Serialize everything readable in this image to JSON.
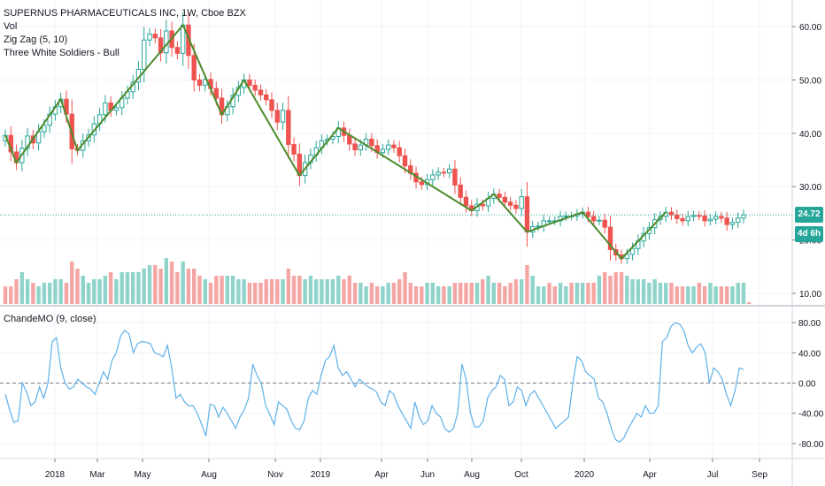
{
  "header": {
    "title": "SUPERNUS PHARMACEUTICALS INC, 1W, Cboe BZX",
    "indicators": [
      "Vol",
      "Zig Zag (5, 10)",
      "Three White Soldiers - Bull"
    ]
  },
  "price_badge": {
    "value": "24.72",
    "countdown": "4d 6h"
  },
  "colors": {
    "up": "#26a69a",
    "down": "#ef5350",
    "volume_up": "#8fd4cb",
    "volume_down": "#f4a6a4",
    "zigzag": "#4c8c2b",
    "cmo_line": "#5eb1e8",
    "badge_price": "#26a69a",
    "badge_countdown": "#26a69a"
  },
  "chart_data": [
    {
      "type": "candlestick",
      "title": "SUPERNUS PHARMACEUTICALS INC, 1W, Cboe BZX",
      "ylim": [
        8,
        65
      ],
      "yticks": [
        10,
        20,
        30,
        40,
        50,
        60
      ],
      "ytick_labels": [
        "10.00",
        "20.00",
        "30.00",
        "40.00",
        "50.00",
        "60.00"
      ],
      "x_tick_labels": [
        "2018",
        "Mar",
        "May",
        "Aug",
        "Nov",
        "2019",
        "Apr",
        "Jun",
        "Aug",
        "Oct",
        "2020",
        "Apr",
        "Jul",
        "Sep"
      ],
      "current_price": 24.72,
      "close": [
        39.6,
        36.5,
        34.5,
        37.2,
        39.5,
        38.2,
        40.3,
        41.5,
        43.6,
        45.0,
        46.4,
        43.6,
        37.1,
        36.8,
        38.6,
        39.7,
        41.8,
        43.5,
        45.7,
        44.3,
        44.8,
        46.6,
        47.8,
        49.6,
        52.0,
        57.5,
        58.6,
        57.9,
        55.1,
        59.2,
        56.1,
        55.0,
        60.3,
        54.6,
        50.0,
        49.0,
        50.1,
        48.4,
        46.6,
        43.5,
        45.0,
        47.1,
        48.6,
        50.0,
        49.0,
        48.1,
        47.2,
        46.3,
        44.3,
        42.1,
        44.3,
        37.9,
        36.1,
        32.1,
        34.5,
        35.9,
        37.3,
        38.6,
        38.9,
        39.4,
        41.0,
        39.6,
        38.0,
        36.9,
        37.8,
        38.9,
        37.7,
        36.4,
        37.0,
        37.8,
        37.3,
        35.8,
        33.9,
        32.5,
        30.9,
        30.4,
        31.3,
        32.2,
        32.7,
        32.6,
        33.3,
        30.3,
        28.0,
        26.4,
        25.5,
        26.7,
        26.4,
        27.8,
        28.6,
        28.0,
        27.1,
        26.5,
        25.9,
        28.1,
        21.5,
        22.5,
        22.6,
        23.6,
        23.6,
        23.6,
        24.4,
        24.5,
        24.5,
        24.9,
        25.2,
        24.4,
        23.6,
        23.7,
        22.4,
        18.2,
        17.2,
        16.5,
        17.3,
        18.4,
        19.8,
        21.2,
        22.3,
        23.8,
        24.4,
        25.2,
        24.7,
        24.0,
        23.6,
        24.4,
        24.6,
        24.5,
        23.6,
        23.9,
        24.4,
        24.1,
        22.9,
        23.3,
        24.1,
        24.72
      ]
    },
    {
      "type": "bar",
      "title": "Vol",
      "values": [
        5,
        5,
        7,
        9,
        7,
        6,
        5,
        6,
        6,
        7,
        7,
        6,
        12,
        10,
        8,
        6,
        7,
        7,
        8,
        9,
        7,
        9,
        9,
        9,
        9,
        10,
        11,
        11,
        10,
        13,
        12,
        9,
        12,
        10,
        10,
        8,
        7,
        6,
        8,
        8,
        8,
        8,
        7,
        7,
        6,
        6,
        6,
        7,
        7,
        7,
        7,
        10,
        8,
        8,
        7,
        8,
        7,
        7,
        7,
        7,
        8,
        7,
        8,
        6,
        6,
        5,
        6,
        5,
        5,
        6,
        6,
        7,
        9,
        6,
        5,
        5,
        6,
        6,
        5,
        5,
        5,
        6,
        6,
        6,
        6,
        6,
        7,
        8,
        6,
        6,
        5,
        6,
        7,
        7,
        11,
        8,
        5,
        5,
        6,
        5,
        6,
        5,
        6,
        6,
        6,
        6,
        6,
        8,
        9,
        8,
        9,
        9,
        8,
        7,
        7,
        7,
        6,
        7,
        6,
        6,
        6,
        5,
        5,
        5,
        5,
        6,
        5,
        6,
        5,
        5,
        5,
        5,
        6,
        6,
        0.5
      ],
      "up": [
        0,
        0,
        0,
        1,
        1,
        0,
        1,
        1,
        1,
        1,
        1,
        0,
        0,
        0,
        1,
        1,
        1,
        1,
        1,
        0,
        1,
        1,
        1,
        1,
        1,
        1,
        1,
        0,
        0,
        1,
        0,
        0,
        1,
        0,
        0,
        0,
        1,
        0,
        0,
        0,
        1,
        1,
        1,
        1,
        0,
        0,
        0,
        0,
        0,
        0,
        1,
        0,
        0,
        0,
        1,
        1,
        1,
        1,
        1,
        1,
        1,
        0,
        0,
        0,
        1,
        1,
        0,
        0,
        1,
        1,
        0,
        0,
        0,
        0,
        0,
        0,
        1,
        1,
        1,
        0,
        1,
        0,
        0,
        0,
        0,
        1,
        0,
        1,
        1,
        0,
        0,
        0,
        0,
        1,
        0,
        1,
        1,
        1,
        0,
        0,
        1,
        1,
        0,
        1,
        1,
        0,
        0,
        1,
        0,
        0,
        0,
        0,
        1,
        1,
        1,
        1,
        1,
        1,
        1,
        1,
        0,
        0,
        0,
        1,
        1,
        0,
        0,
        1,
        1,
        0,
        0,
        1,
        1,
        1
      ]
    },
    {
      "type": "line",
      "title": "ChandeMO (9, close)",
      "ylim": [
        -100,
        100
      ],
      "yticks": [
        -80,
        -40,
        0,
        40,
        80
      ],
      "ytick_labels": [
        "-80.00",
        "-40.00",
        "0.00",
        "40.00",
        "80.00"
      ],
      "zero_line": true,
      "values": [
        -15,
        -35,
        -52,
        -50,
        0,
        -12,
        -30,
        -25,
        -5,
        -20,
        0,
        55,
        60,
        20,
        0,
        -8,
        -5,
        5,
        0,
        -5,
        -8,
        -15,
        0,
        15,
        5,
        30,
        40,
        62,
        70,
        65,
        40,
        52,
        55,
        54,
        52,
        40,
        38,
        35,
        50,
        20,
        -20,
        -15,
        -25,
        -30,
        -30,
        -40,
        -55,
        -70,
        -28,
        -30,
        -45,
        -32,
        -40,
        -50,
        -60,
        -45,
        -35,
        -20,
        25,
        10,
        0,
        -30,
        -42,
        -55,
        -25,
        -30,
        -35,
        -50,
        -60,
        -62,
        -50,
        -20,
        -10,
        -15,
        10,
        30,
        35,
        50,
        20,
        10,
        15,
        5,
        -5,
        5,
        0,
        -5,
        -8,
        -12,
        -25,
        -30,
        -10,
        -15,
        -30,
        -40,
        -50,
        -60,
        -25,
        -45,
        -55,
        -50,
        -30,
        -40,
        -45,
        -60,
        -65,
        -60,
        -40,
        25,
        5,
        -40,
        -58,
        -58,
        -50,
        -20,
        -10,
        -5,
        10,
        5,
        -30,
        -25,
        -5,
        -10,
        -30,
        -15,
        -10,
        -20,
        -30,
        -40,
        -50,
        -60,
        -55,
        -50,
        -45,
        0,
        35,
        30,
        15,
        10,
        5,
        -20,
        -25,
        -40,
        -60,
        -75,
        -78,
        -72,
        -60,
        -50,
        -40,
        -45,
        -30,
        -40,
        -40,
        -30,
        55,
        60,
        75,
        80,
        78,
        70,
        50,
        40,
        48,
        52,
        40,
        0,
        20,
        15,
        5,
        -15,
        -30,
        -10,
        20,
        18
      ]
    }
  ]
}
